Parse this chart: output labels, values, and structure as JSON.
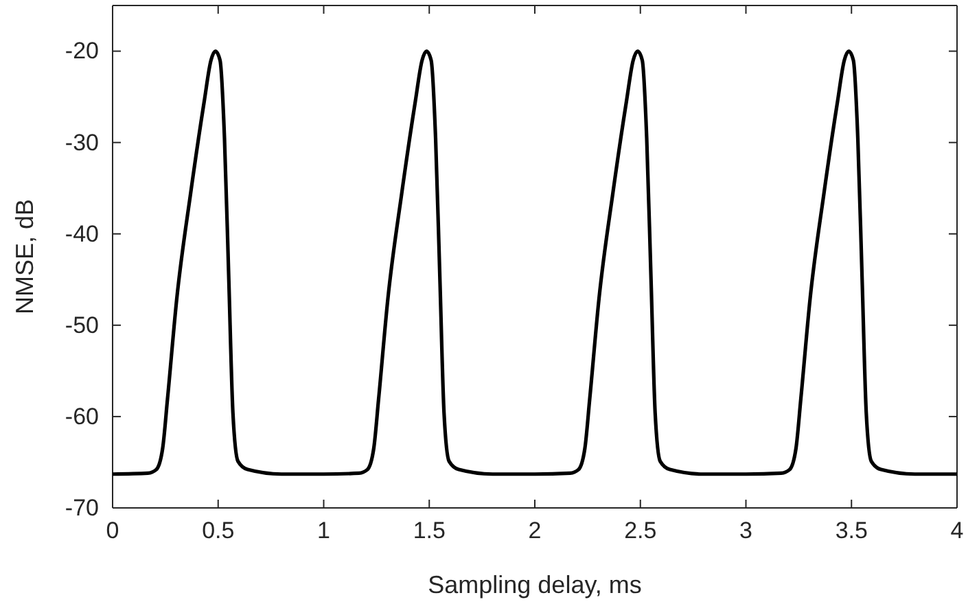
{
  "chart_data": {
    "type": "line",
    "xlabel": "Sampling delay, ms",
    "ylabel": "NMSE, dB",
    "xlim": [
      0,
      4
    ],
    "ylim": [
      -70,
      -15
    ],
    "xticks": [
      0,
      0.5,
      1,
      1.5,
      2,
      2.5,
      3,
      3.5,
      4
    ],
    "yticks": [
      -70,
      -60,
      -50,
      -40,
      -30,
      -20
    ],
    "marker": "none",
    "line_style": "solid",
    "series": [
      {
        "color": "#000000",
        "x": [
          0,
          0.167,
          0.207,
          0.237,
          0.26,
          0.304,
          0.37,
          0.434,
          0.466,
          0.487,
          0.509,
          0.53,
          0.55,
          0.57,
          0.594,
          0.64,
          0.8,
          1.0,
          1.167,
          1.207,
          1.237,
          1.26,
          1.304,
          1.37,
          1.434,
          1.466,
          1.487,
          1.509,
          1.53,
          1.55,
          1.57,
          1.594,
          1.64,
          1.8,
          2.0,
          2.167,
          2.207,
          2.237,
          2.26,
          2.304,
          2.37,
          2.434,
          2.466,
          2.487,
          2.509,
          2.53,
          2.55,
          2.57,
          2.594,
          2.64,
          2.8,
          3.0,
          3.167,
          3.207,
          3.237,
          3.26,
          3.304,
          3.37,
          3.434,
          3.466,
          3.487,
          3.509,
          3.53,
          3.55,
          3.57,
          3.594,
          3.64,
          3.8,
          4.0
        ],
        "values": [
          -66.3,
          -66.2,
          -65.8,
          -63.5,
          -58.1,
          -47.1,
          -35.5,
          -25.5,
          -21,
          -20,
          -21,
          -29.5,
          -44.6,
          -59.6,
          -64.9,
          -65.8,
          -66.3,
          -66.3,
          -66.2,
          -65.8,
          -63.5,
          -58.1,
          -47.1,
          -35.5,
          -25.5,
          -21,
          -20,
          -21,
          -29.5,
          -44.6,
          -59.6,
          -64.9,
          -65.8,
          -66.3,
          -66.3,
          -66.2,
          -65.8,
          -63.5,
          -58.1,
          -47.1,
          -35.5,
          -25.5,
          -21,
          -20,
          -21,
          -29.5,
          -44.6,
          -59.6,
          -64.9,
          -65.8,
          -66.3,
          -66.3,
          -66.2,
          -65.8,
          -63.5,
          -58.1,
          -47.1,
          -35.5,
          -25.5,
          -21,
          -20,
          -21,
          -29.5,
          -44.6,
          -59.6,
          -64.9,
          -65.8,
          -66.3,
          -66.3
        ]
      }
    ]
  }
}
